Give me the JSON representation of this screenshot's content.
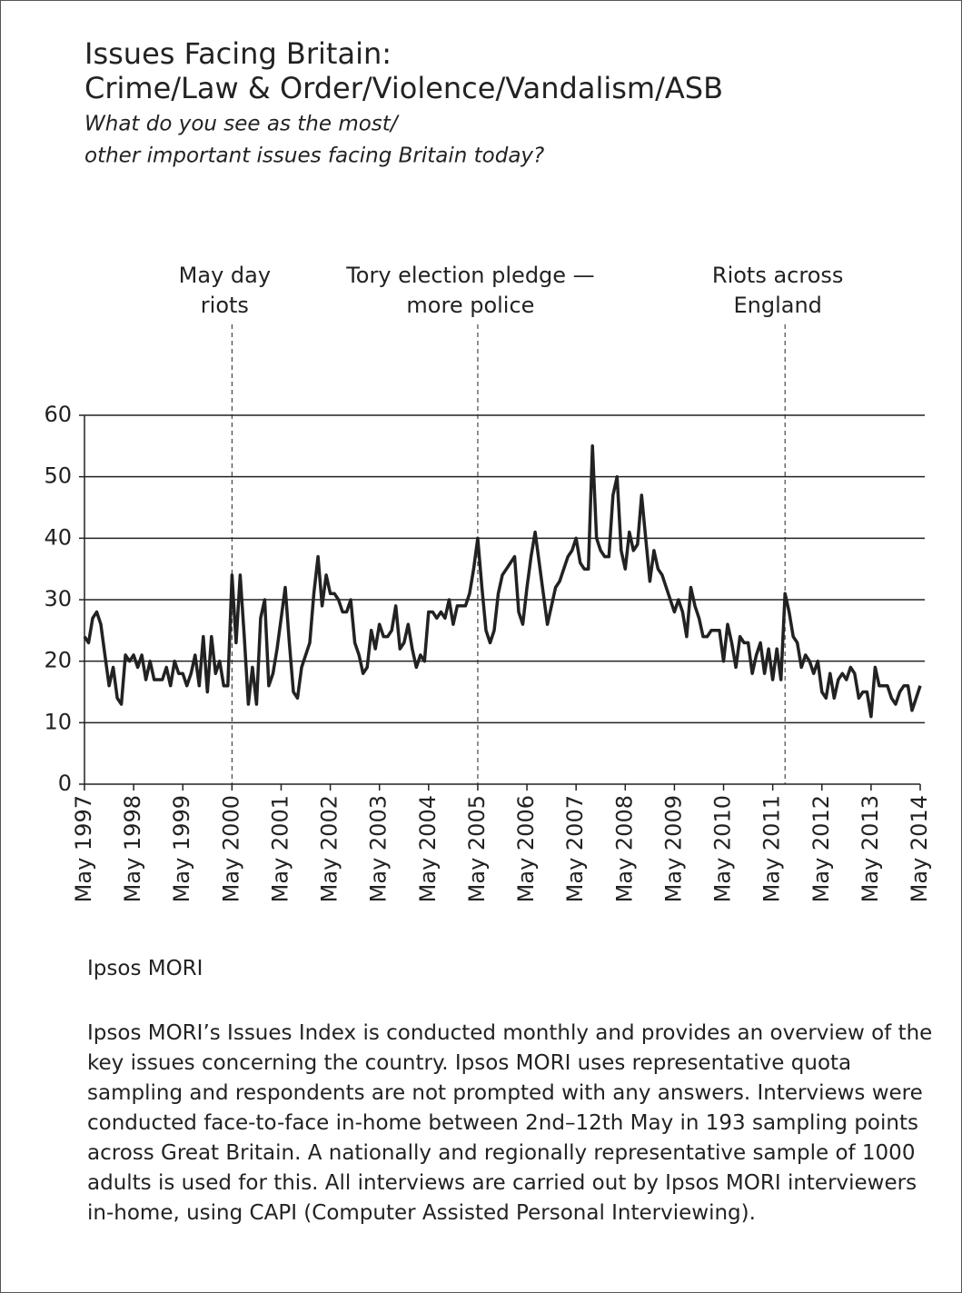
{
  "chart_data": {
    "type": "line",
    "title": [
      "Issues Facing Britain:",
      "Crime/Law & Order/Violence/Vandalism/ASB"
    ],
    "subtitle": [
      "What do you see as the most/",
      "other important issues facing Britain today?"
    ],
    "color": "#222222",
    "x": [
      "1997-05",
      "1997-06",
      "1997-07",
      "1997-08",
      "1997-09",
      "1997-10",
      "1997-11",
      "1997-12",
      "1998-01",
      "1998-02",
      "1998-03",
      "1998-04",
      "1998-05",
      "1998-06",
      "1998-07",
      "1998-08",
      "1998-09",
      "1998-10",
      "1998-11",
      "1998-12",
      "1999-01",
      "1999-02",
      "1999-03",
      "1999-04",
      "1999-05",
      "1999-06",
      "1999-07",
      "1999-08",
      "1999-09",
      "1999-10",
      "1999-11",
      "1999-12",
      "2000-01",
      "2000-02",
      "2000-03",
      "2000-04",
      "2000-05",
      "2000-06",
      "2000-07",
      "2000-08",
      "2000-09",
      "2000-10",
      "2000-11",
      "2000-12",
      "2001-01",
      "2001-02",
      "2001-03",
      "2001-04",
      "2001-05",
      "2001-06",
      "2001-07",
      "2001-08",
      "2001-09",
      "2001-10",
      "2001-11",
      "2001-12",
      "2002-01",
      "2002-02",
      "2002-03",
      "2002-04",
      "2002-05",
      "2002-06",
      "2002-07",
      "2002-08",
      "2002-09",
      "2002-10",
      "2002-11",
      "2002-12",
      "2003-01",
      "2003-02",
      "2003-03",
      "2003-04",
      "2003-05",
      "2003-06",
      "2003-07",
      "2003-08",
      "2003-09",
      "2003-10",
      "2003-11",
      "2003-12",
      "2004-01",
      "2004-02",
      "2004-03",
      "2004-04",
      "2004-05",
      "2004-06",
      "2004-07",
      "2004-08",
      "2004-09",
      "2004-10",
      "2004-11",
      "2004-12",
      "2005-01",
      "2005-02",
      "2005-03",
      "2005-04",
      "2005-05",
      "2005-06",
      "2005-07",
      "2005-08",
      "2005-09",
      "2005-10",
      "2005-11",
      "2005-12",
      "2006-01",
      "2006-02",
      "2006-03",
      "2006-04",
      "2006-05",
      "2006-06",
      "2006-07",
      "2006-08",
      "2006-09",
      "2006-10",
      "2006-11",
      "2006-12",
      "2007-01",
      "2007-02",
      "2007-03",
      "2007-04",
      "2007-05",
      "2007-06",
      "2007-07",
      "2007-08",
      "2007-09",
      "2007-10",
      "2007-11",
      "2007-12",
      "2008-01",
      "2008-02",
      "2008-03",
      "2008-04",
      "2008-05",
      "2008-06",
      "2008-07",
      "2008-08",
      "2008-09",
      "2008-10",
      "2008-11",
      "2008-12",
      "2009-01",
      "2009-02",
      "2009-03",
      "2009-04",
      "2009-05",
      "2009-06",
      "2009-07",
      "2009-08",
      "2009-09",
      "2009-10",
      "2009-11",
      "2009-12",
      "2010-01",
      "2010-02",
      "2010-03",
      "2010-04",
      "2010-05",
      "2010-06",
      "2010-07",
      "2010-08",
      "2010-09",
      "2010-10",
      "2010-11",
      "2010-12",
      "2011-01",
      "2011-02",
      "2011-03",
      "2011-04",
      "2011-05",
      "2011-06",
      "2011-07",
      "2011-08",
      "2011-09",
      "2011-10",
      "2011-11",
      "2011-12",
      "2012-01",
      "2012-02",
      "2012-03",
      "2012-04",
      "2012-05",
      "2012-06",
      "2012-07",
      "2012-08",
      "2012-09",
      "2012-10",
      "2012-11",
      "2012-12",
      "2013-01",
      "2013-02",
      "2013-03",
      "2013-04",
      "2013-05",
      "2013-06",
      "2013-07",
      "2013-08",
      "2013-09",
      "2013-10",
      "2013-11",
      "2013-12",
      "2014-01",
      "2014-02",
      "2014-03",
      "2014-04",
      "2014-05"
    ],
    "values": [
      24,
      23,
      27,
      28,
      26,
      21,
      16,
      19,
      14,
      13,
      21,
      20,
      21,
      19,
      21,
      17,
      20,
      17,
      17,
      17,
      19,
      16,
      20,
      18,
      18,
      16,
      18,
      21,
      16,
      24,
      15,
      24,
      18,
      20,
      16,
      16,
      34,
      23,
      34,
      24,
      13,
      19,
      13,
      27,
      30,
      16,
      18,
      22,
      27,
      32,
      23,
      15,
      14,
      19,
      21,
      23,
      31,
      37,
      29,
      34,
      31,
      31,
      30,
      28,
      28,
      30,
      23,
      21,
      18,
      19,
      25,
      22,
      26,
      24,
      24,
      25,
      29,
      22,
      23,
      26,
      22,
      19,
      21,
      20,
      28,
      28,
      27,
      28,
      27,
      30,
      26,
      29,
      29,
      29,
      31,
      35,
      40,
      32,
      25,
      23,
      25,
      31,
      34,
      35,
      36,
      37,
      28,
      26,
      32,
      37,
      41,
      36,
      31,
      26,
      29,
      32,
      33,
      35,
      37,
      38,
      40,
      36,
      35,
      35,
      55,
      40,
      38,
      37,
      37,
      47,
      50,
      38,
      35,
      41,
      38,
      39,
      47,
      40,
      33,
      38,
      35,
      34,
      32,
      30,
      28,
      30,
      28,
      24,
      32,
      29,
      27,
      24,
      24,
      25,
      25,
      25,
      20,
      26,
      23,
      19,
      24,
      23,
      23,
      18,
      21,
      23,
      18,
      22,
      17,
      22,
      17,
      31,
      28,
      24,
      23,
      19,
      21,
      20,
      18,
      20,
      15,
      14,
      18,
      14,
      17,
      18,
      17,
      19,
      18,
      14,
      15,
      15,
      11,
      19,
      16,
      16,
      16,
      14,
      13,
      15,
      16,
      16,
      12,
      14,
      16
    ],
    "xlim": [
      "1997-05",
      "2014-05"
    ],
    "xticks": [
      {
        "value": "1997-05",
        "label": "May 1997"
      },
      {
        "value": "1998-05",
        "label": "May 1998"
      },
      {
        "value": "1999-05",
        "label": "May 1999"
      },
      {
        "value": "2000-05",
        "label": "May 2000"
      },
      {
        "value": "2001-05",
        "label": "May 2001"
      },
      {
        "value": "2002-05",
        "label": "May 2002"
      },
      {
        "value": "2003-05",
        "label": "May 2003"
      },
      {
        "value": "2004-05",
        "label": "May 2004"
      },
      {
        "value": "2005-05",
        "label": "May 2005"
      },
      {
        "value": "2006-05",
        "label": "May 2006"
      },
      {
        "value": "2007-05",
        "label": "May 2007"
      },
      {
        "value": "2008-05",
        "label": "May 2008"
      },
      {
        "value": "2009-05",
        "label": "May 2009"
      },
      {
        "value": "2010-05",
        "label": "May 2010"
      },
      {
        "value": "2011-05",
        "label": "May 2011"
      },
      {
        "value": "2012-05",
        "label": "May 2012"
      },
      {
        "value": "2013-05",
        "label": "May 2013"
      },
      {
        "value": "2014-05",
        "label": "May 2014"
      }
    ],
    "ylim": [
      0,
      60
    ],
    "yticks": [
      0,
      10,
      20,
      30,
      40,
      50,
      60
    ],
    "grid": true,
    "annotations": [
      {
        "x": "2000-05",
        "text": [
          "May day",
          "riots"
        ]
      },
      {
        "x": "2005-05",
        "text": [
          "Tory election pledge —",
          "more police"
        ]
      },
      {
        "x": "2011-08",
        "text": [
          "Riots across",
          "England"
        ]
      }
    ],
    "source": "Ipsos MORI",
    "note": "Ipsos MORI’s Issues Index is conducted monthly and provides an overview of the key issues concerning the country. Ipsos MORI uses representative quota sampling and respondents are not prompted with any answers. Interviews were conducted face-to-face in-home between 2nd–12th May in 193 sampling points across Great Britain. A nationally and regionally representative sample of 1000 adults is used for this. All interviews are carried out by Ipsos MORI interviewers in-home, using CAPI (Computer Assisted Personal Interviewing)."
  }
}
